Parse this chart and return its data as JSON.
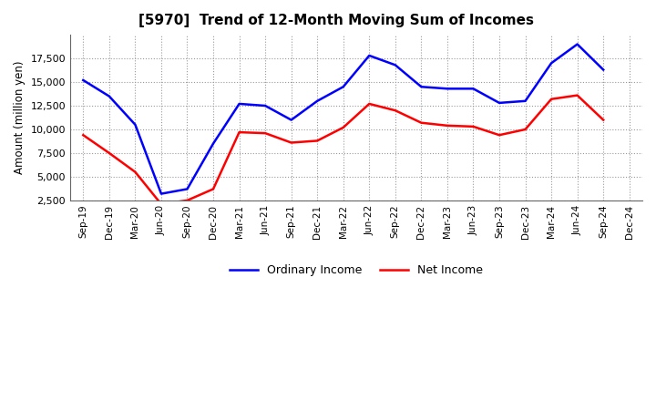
{
  "title": "[5970]  Trend of 12-Month Moving Sum of Incomes",
  "ylabel": "Amount (million yen)",
  "labels": [
    "Sep-19",
    "Dec-19",
    "Mar-20",
    "Jun-20",
    "Sep-20",
    "Dec-20",
    "Mar-21",
    "Jun-21",
    "Sep-21",
    "Dec-21",
    "Mar-22",
    "Jun-22",
    "Sep-22",
    "Dec-22",
    "Mar-23",
    "Jun-23",
    "Sep-23",
    "Dec-23",
    "Mar-24",
    "Jun-24",
    "Sep-24",
    "Dec-24"
  ],
  "ordinary_income": [
    15200,
    13500,
    10500,
    3200,
    3700,
    8500,
    12700,
    12500,
    11000,
    13000,
    14500,
    17800,
    16800,
    14500,
    14300,
    14300,
    12800,
    13000,
    17000,
    19000,
    16300,
    null
  ],
  "net_income": [
    9400,
    7500,
    5500,
    2100,
    2500,
    3700,
    9700,
    9600,
    8600,
    8800,
    10200,
    12700,
    12000,
    10700,
    10400,
    10300,
    9400,
    10000,
    13200,
    13600,
    11000,
    null
  ],
  "ordinary_color": "#0000FF",
  "net_color": "#FF0000",
  "background_color": "#FFFFFF",
  "plot_bg_color": "#FFFFFF",
  "grid_color": "#999999",
  "ylim": [
    2500,
    20000
  ],
  "yticks": [
    2500,
    5000,
    7500,
    10000,
    12500,
    15000,
    17500
  ],
  "title_fontsize": 11,
  "legend_labels": [
    "Ordinary Income",
    "Net Income"
  ]
}
